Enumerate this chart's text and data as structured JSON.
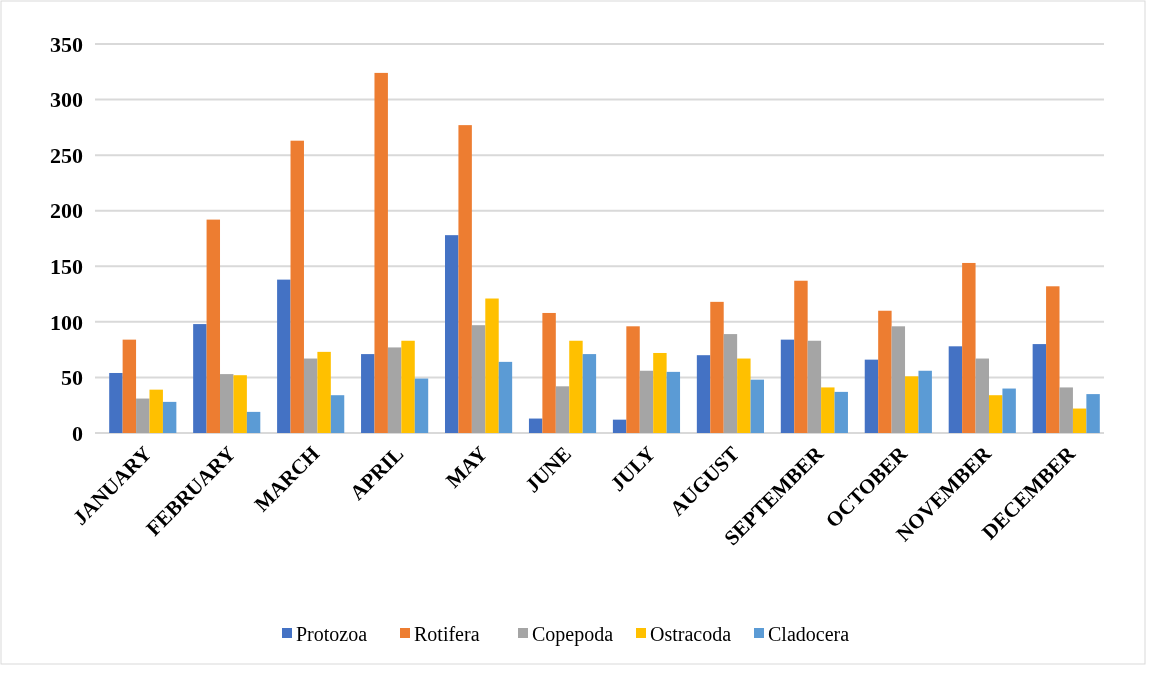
{
  "chart_data": {
    "type": "bar",
    "categories": [
      "JANUARY",
      "FEBRUARY",
      "MARCH",
      "APRIL",
      "MAY",
      "JUNE",
      "JULY",
      "AUGUST",
      "SEPTEMBER",
      "OCTOBER",
      "NOVEMBER",
      "DECEMBER"
    ],
    "series": [
      {
        "name": "Protozoa",
        "color": "#4472c4",
        "values": [
          54,
          98,
          138,
          71,
          178,
          13,
          12,
          70,
          84,
          66,
          78,
          80
        ]
      },
      {
        "name": "Rotifera",
        "color": "#ed7d31",
        "values": [
          84,
          192,
          263,
          324,
          277,
          108,
          96,
          118,
          137,
          110,
          153,
          132
        ]
      },
      {
        "name": "Copepoda",
        "color": "#a5a5a5",
        "values": [
          31,
          53,
          67,
          77,
          97,
          42,
          56,
          89,
          83,
          96,
          67,
          41
        ]
      },
      {
        "name": "Ostracoda",
        "color": "#ffc000",
        "values": [
          39,
          52,
          73,
          83,
          121,
          83,
          72,
          67,
          41,
          51,
          34,
          22
        ]
      },
      {
        "name": "Cladocera",
        "color": "#5b9bd5",
        "values": [
          28,
          19,
          34,
          49,
          64,
          71,
          55,
          48,
          37,
          56,
          40,
          35
        ]
      }
    ],
    "ylim": [
      0,
      350
    ],
    "yticks": [
      0,
      50,
      100,
      150,
      200,
      250,
      300,
      350
    ],
    "grid": "y",
    "legend": "bottom"
  }
}
